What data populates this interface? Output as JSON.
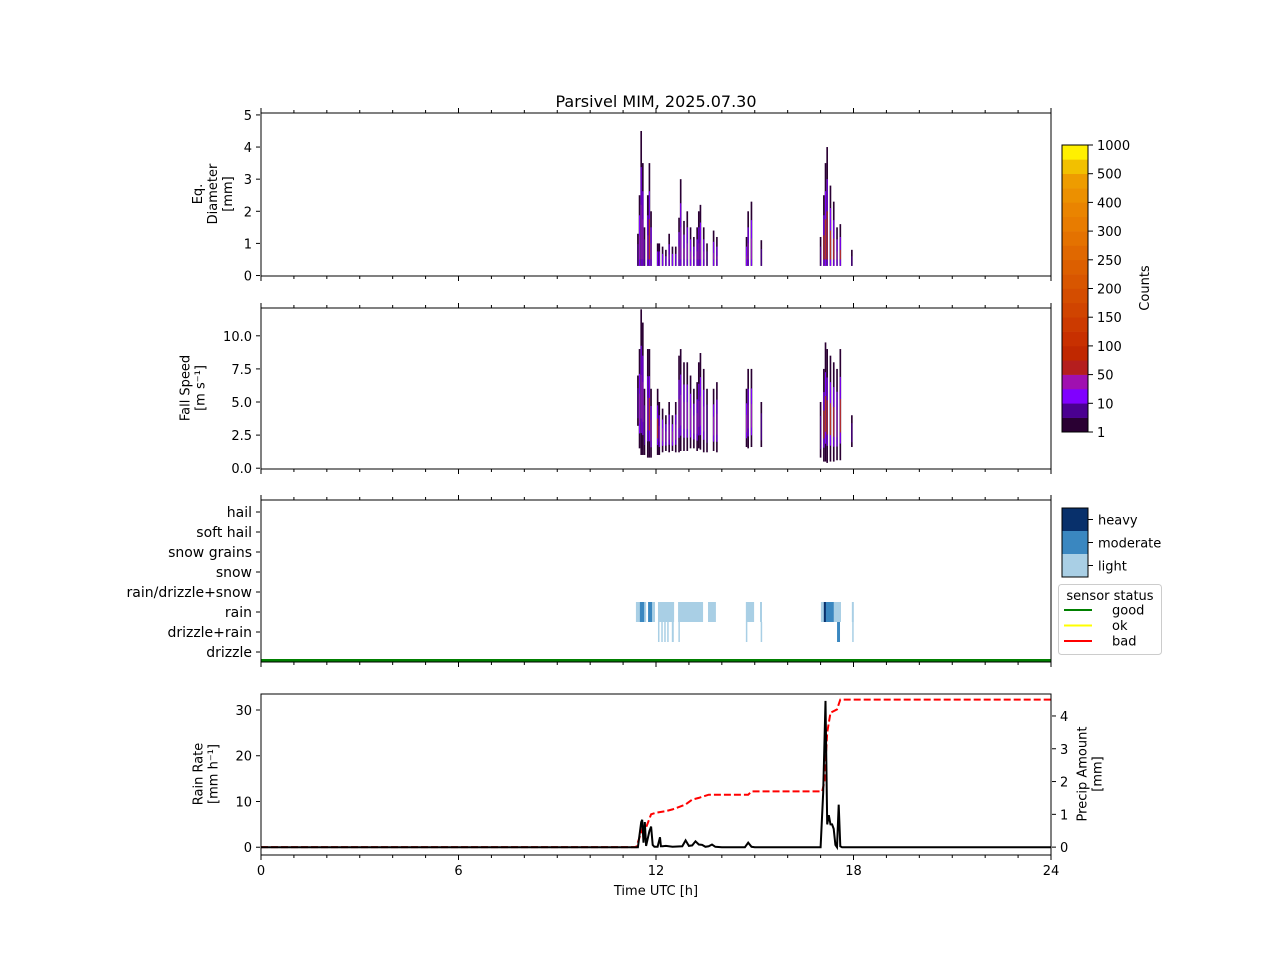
{
  "title": "Parsivel MIM, 2025.07.30",
  "chart_data": [
    {
      "type": "heatmap",
      "ylabel": "Eq.\nDiameter\n[mm]",
      "ylim": [
        0,
        5
      ],
      "yticks": [
        "0",
        "1",
        "2",
        "3",
        "4",
        "5"
      ],
      "xlim": [
        0,
        24
      ],
      "columns_note_fields": [
        "time_h",
        "d_max_mm",
        "v_max_ms",
        "v_min_ms",
        "peak_level"
      ],
      "columns": [
        [
          11.45,
          1.3,
          7.0,
          3.2,
          "low"
        ],
        [
          11.5,
          2.5,
          9.0,
          1.5,
          "mid"
        ],
        [
          11.55,
          4.5,
          12.0,
          1.0,
          "mid"
        ],
        [
          11.6,
          3.5,
          11.0,
          1.0,
          "mid"
        ],
        [
          11.65,
          1.5,
          6.0,
          1.0,
          "low"
        ],
        [
          11.75,
          2.5,
          9.0,
          0.8,
          "mid"
        ],
        [
          11.8,
          3.5,
          9.0,
          0.8,
          "high"
        ],
        [
          11.85,
          2.0,
          6.0,
          0.8,
          "mid"
        ],
        [
          12.05,
          1.0,
          6.0,
          1.0,
          "high"
        ],
        [
          12.1,
          1.0,
          5.0,
          1.0,
          "mid"
        ],
        [
          12.2,
          0.9,
          4.5,
          1.2,
          "mid"
        ],
        [
          12.3,
          0.8,
          4.0,
          1.3,
          "mid"
        ],
        [
          12.4,
          1.3,
          5.0,
          1.2,
          "mid"
        ],
        [
          12.5,
          0.9,
          4.0,
          1.3,
          "mid"
        ],
        [
          12.6,
          0.9,
          5.0,
          1.2,
          "mid"
        ],
        [
          12.7,
          1.8,
          8.5,
          1.2,
          "mid"
        ],
        [
          12.75,
          3.0,
          9.0,
          1.3,
          "mid"
        ],
        [
          12.85,
          1.7,
          8.0,
          1.3,
          "mid"
        ],
        [
          12.95,
          2.0,
          8.0,
          1.3,
          "mid"
        ],
        [
          13.05,
          1.5,
          7.0,
          1.5,
          "mid"
        ],
        [
          13.15,
          1.2,
          6.0,
          1.5,
          "mid"
        ],
        [
          13.25,
          1.5,
          6.5,
          1.3,
          "mid"
        ],
        [
          13.3,
          2.0,
          8.0,
          1.5,
          "mid"
        ],
        [
          13.35,
          2.2,
          8.7,
          1.4,
          "mid"
        ],
        [
          13.45,
          1.5,
          7.5,
          1.2,
          "mid"
        ],
        [
          13.55,
          1.0,
          6.0,
          1.2,
          "low"
        ],
        [
          13.75,
          1.4,
          6.0,
          1.3,
          "mid"
        ],
        [
          13.85,
          1.2,
          6.5,
          1.2,
          "mid"
        ],
        [
          14.75,
          1.2,
          6.0,
          1.6,
          "mid"
        ],
        [
          14.8,
          2.0,
          7.5,
          1.5,
          "mid"
        ],
        [
          14.9,
          2.3,
          7.5,
          1.6,
          "mid"
        ],
        [
          15.2,
          1.1,
          5.0,
          1.6,
          "low"
        ],
        [
          17.0,
          1.2,
          5.0,
          0.8,
          "low"
        ],
        [
          17.1,
          2.5,
          7.5,
          0.5,
          "high"
        ],
        [
          17.15,
          3.5,
          9.5,
          0.5,
          "high"
        ],
        [
          17.2,
          4.0,
          9.0,
          0.4,
          "high"
        ],
        [
          17.3,
          2.8,
          8.5,
          0.5,
          "high"
        ],
        [
          17.4,
          2.3,
          8.0,
          0.5,
          "high"
        ],
        [
          17.5,
          1.5,
          7.5,
          0.6,
          "mid"
        ],
        [
          17.6,
          1.6,
          9.0,
          0.6,
          "high"
        ],
        [
          17.95,
          0.8,
          4.0,
          1.6,
          "low"
        ]
      ]
    },
    {
      "type": "heatmap",
      "ylabel": "Fall Speed\n[m s⁻¹]",
      "ylim": [
        0,
        12.1
      ],
      "yticks": [
        "0.0",
        "2.5",
        "5.0",
        "7.5",
        "10.0"
      ]
    },
    {
      "type": "table",
      "categories": [
        "hail",
        "soft hail",
        "snow grains",
        "snow",
        "rain/drizzle+snow",
        "rain",
        "drizzle+rain",
        "drizzle"
      ],
      "intensity_legend": [
        {
          "label": "heavy",
          "color": "#08306b"
        },
        {
          "label": "moderate",
          "color": "#3a87c0"
        },
        {
          "label": "light",
          "color": "#a9cfe5"
        }
      ],
      "status_legend": {
        "title": "sensor status",
        "entries": [
          {
            "label": "good",
            "color": "#008000"
          },
          {
            "label": "ok",
            "color": "#ffff00"
          },
          {
            "label": "bad",
            "color": "#ff0000"
          }
        ]
      },
      "sensor_status": "good",
      "segments": [
        {
          "category": "rain",
          "start": 11.39,
          "end": 11.7,
          "intensity": "light"
        },
        {
          "category": "rain",
          "start": 11.51,
          "end": 11.64,
          "intensity": "moderate"
        },
        {
          "category": "rain",
          "start": 11.76,
          "end": 11.97,
          "intensity": "light"
        },
        {
          "category": "rain",
          "start": 11.76,
          "end": 11.88,
          "intensity": "moderate"
        },
        {
          "category": "rain",
          "start": 12.06,
          "end": 12.55,
          "intensity": "light"
        },
        {
          "category": "rain",
          "start": 12.67,
          "end": 13.43,
          "intensity": "light"
        },
        {
          "category": "rain",
          "start": 13.58,
          "end": 13.82,
          "intensity": "light"
        },
        {
          "category": "rain",
          "start": 14.73,
          "end": 14.98,
          "intensity": "light"
        },
        {
          "category": "rain",
          "start": 15.16,
          "end": 15.22,
          "intensity": "light"
        },
        {
          "category": "rain",
          "start": 17.01,
          "end": 17.62,
          "intensity": "light"
        },
        {
          "category": "rain",
          "start": 17.1,
          "end": 17.4,
          "intensity": "moderate"
        },
        {
          "category": "rain",
          "start": 17.1,
          "end": 17.16,
          "intensity": "heavy"
        },
        {
          "category": "rain",
          "start": 17.95,
          "end": 18.01,
          "intensity": "light"
        },
        {
          "category": "drizzle+rain",
          "start": 12.06,
          "end": 12.09,
          "intensity": "light"
        },
        {
          "category": "drizzle+rain",
          "start": 12.16,
          "end": 12.2,
          "intensity": "light"
        },
        {
          "category": "drizzle+rain",
          "start": 12.25,
          "end": 12.29,
          "intensity": "light"
        },
        {
          "category": "drizzle+rain",
          "start": 12.34,
          "end": 12.38,
          "intensity": "light"
        },
        {
          "category": "drizzle+rain",
          "start": 12.48,
          "end": 12.54,
          "intensity": "light"
        },
        {
          "category": "drizzle+rain",
          "start": 12.68,
          "end": 12.72,
          "intensity": "light"
        },
        {
          "category": "drizzle+rain",
          "start": 14.73,
          "end": 14.77,
          "intensity": "light"
        },
        {
          "category": "drizzle+rain",
          "start": 15.18,
          "end": 15.22,
          "intensity": "light"
        },
        {
          "category": "drizzle+rain",
          "start": 17.5,
          "end": 17.59,
          "intensity": "moderate"
        },
        {
          "category": "drizzle+rain",
          "start": 17.96,
          "end": 18.0,
          "intensity": "light"
        }
      ]
    },
    {
      "type": "line",
      "xlabel": "Time UTC [h]",
      "xlim": [
        0,
        24
      ],
      "xticks": [
        "0",
        "6",
        "12",
        "18",
        "24"
      ],
      "ylabel": "Rain Rate\n[mm h⁻¹]",
      "ylim": [
        -1.7,
        33.5
      ],
      "yticks": [
        "0",
        "10",
        "20",
        "30"
      ],
      "y2label": "Precip Amount\n[mm]",
      "y2lim": [
        -0.24,
        4.67
      ],
      "y2ticks": [
        "0",
        "1",
        "2",
        "3",
        "4"
      ],
      "series": [
        {
          "axis": "left",
          "color": "#000000",
          "style": "solid",
          "x": [
            0,
            11.45,
            11.55,
            11.58,
            11.62,
            11.66,
            11.7,
            11.8,
            11.85,
            11.9,
            11.95,
            12.05,
            12.12,
            12.15,
            12.2,
            12.3,
            12.5,
            12.8,
            12.9,
            13.0,
            13.1,
            13.2,
            13.3,
            13.4,
            13.5,
            13.6,
            13.7,
            13.8,
            14.0,
            14.7,
            14.8,
            14.9,
            15.0,
            17.0,
            17.08,
            17.15,
            17.2,
            17.25,
            17.3,
            17.35,
            17.4,
            17.45,
            17.5,
            17.55,
            17.6,
            17.65,
            24
          ],
          "y": [
            0,
            0,
            5.5,
            6.0,
            1.0,
            5.5,
            0.3,
            3.5,
            4.5,
            0.5,
            0.1,
            0.1,
            2.2,
            0.2,
            0.2,
            0.3,
            0.1,
            0.2,
            1.5,
            0.3,
            0.4,
            1.3,
            0.6,
            0.5,
            0.1,
            0.2,
            0.6,
            0.1,
            0,
            0,
            1.0,
            0.1,
            0,
            0,
            12,
            32,
            5,
            7,
            5,
            5,
            4,
            0.5,
            0,
            9.3,
            0.2,
            0,
            0
          ]
        },
        {
          "axis": "right",
          "color": "#ff0000",
          "style": "dashed",
          "x": [
            0,
            11.4,
            11.6,
            11.7,
            11.85,
            12.0,
            12.3,
            12.5,
            12.9,
            13.1,
            13.3,
            13.6,
            13.8,
            14.8,
            14.9,
            17.05,
            17.12,
            17.2,
            17.3,
            17.4,
            17.5,
            17.6,
            24
          ],
          "y": [
            0,
            0,
            0.6,
            0.6,
            1.0,
            1.05,
            1.1,
            1.15,
            1.3,
            1.45,
            1.5,
            1.6,
            1.6,
            1.6,
            1.7,
            1.7,
            2.0,
            3.5,
            4.1,
            4.15,
            4.2,
            4.5,
            4.5
          ]
        }
      ]
    }
  ],
  "colorbar": {
    "label": "Counts",
    "ticks": [
      "1",
      "10",
      "50",
      "100",
      "150",
      "200",
      "250",
      "300",
      "400",
      "500",
      "1000"
    ],
    "colors": [
      "#2a0033",
      "#4a0090",
      "#8000ff",
      "#a010b0",
      "#b51e1e",
      "#c02800",
      "#c83000",
      "#cc3a00",
      "#d04400",
      "#d44d00",
      "#d85600",
      "#dc5f00",
      "#e06800",
      "#e47200",
      "#e87c00",
      "#ea8400",
      "#ec9000",
      "#ee9c00",
      "#f2c000",
      "#fff000"
    ]
  }
}
